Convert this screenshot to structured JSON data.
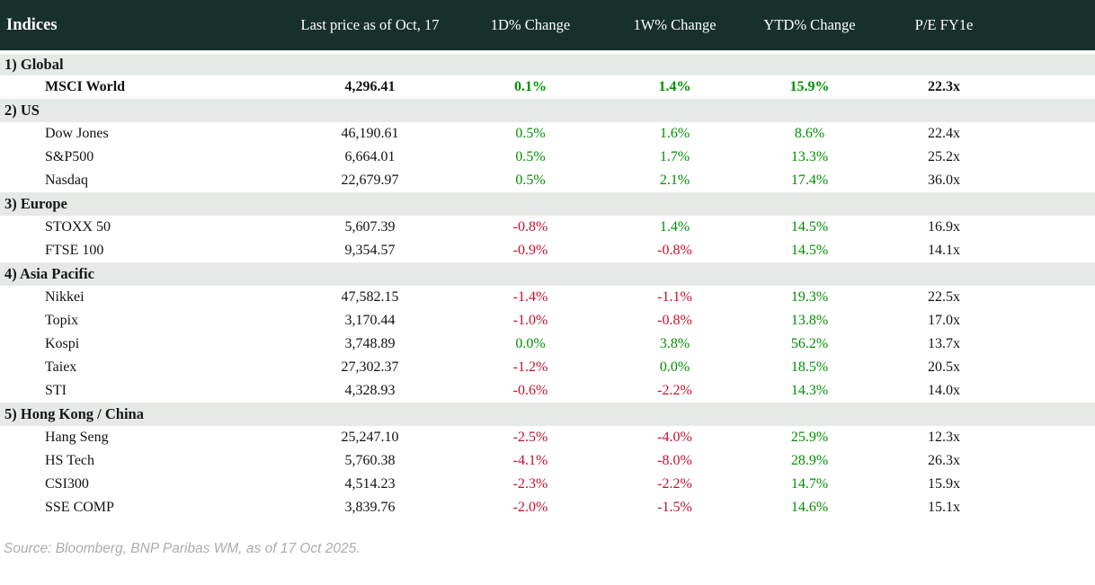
{
  "chart_data": {
    "type": "table",
    "title": "Indices",
    "columns": [
      "Last price as of Oct, 17",
      "1D% Change",
      "1W% Change",
      "YTD% Change",
      "P/E FY1e"
    ],
    "sections": [
      {
        "label": "1) Global",
        "rows": [
          {
            "name": "MSCI World",
            "price": "4,296.41",
            "d1": "0.1%",
            "w1": "1.4%",
            "ytd": "15.9%",
            "pe": "22.3x"
          }
        ]
      },
      {
        "label": "2) US",
        "rows": [
          {
            "name": "Dow Jones",
            "price": "46,190.61",
            "d1": "0.5%",
            "w1": "1.6%",
            "ytd": "8.6%",
            "pe": "22.4x"
          },
          {
            "name": "S&P500",
            "price": "6,664.01",
            "d1": "0.5%",
            "w1": "1.7%",
            "ytd": "13.3%",
            "pe": "25.2x"
          },
          {
            "name": "Nasdaq",
            "price": "22,679.97",
            "d1": "0.5%",
            "w1": "2.1%",
            "ytd": "17.4%",
            "pe": "36.0x"
          }
        ]
      },
      {
        "label": "3) Europe",
        "rows": [
          {
            "name": "STOXX 50",
            "price": "5,607.39",
            "d1": "-0.8%",
            "w1": "1.4%",
            "ytd": "14.5%",
            "pe": "16.9x"
          },
          {
            "name": "FTSE 100",
            "price": "9,354.57",
            "d1": "-0.9%",
            "w1": "-0.8%",
            "ytd": "14.5%",
            "pe": "14.1x"
          }
        ]
      },
      {
        "label": "4) Asia Pacific",
        "rows": [
          {
            "name": "Nikkei",
            "price": "47,582.15",
            "d1": "-1.4%",
            "w1": "-1.1%",
            "ytd": "19.3%",
            "pe": "22.5x"
          },
          {
            "name": "Topix",
            "price": "3,170.44",
            "d1": "-1.0%",
            "w1": "-0.8%",
            "ytd": "13.8%",
            "pe": "17.0x"
          },
          {
            "name": "Kospi",
            "price": "3,748.89",
            "d1": "0.0%",
            "w1": "3.8%",
            "ytd": "56.2%",
            "pe": "13.7x"
          },
          {
            "name": "Taiex",
            "price": "27,302.37",
            "d1": "-1.2%",
            "w1": "0.0%",
            "ytd": "18.5%",
            "pe": "20.5x"
          },
          {
            "name": "STI",
            "price": "4,328.93",
            "d1": "-0.6%",
            "w1": "-2.2%",
            "ytd": "14.3%",
            "pe": "14.0x"
          }
        ]
      },
      {
        "label": "5) Hong Kong / China",
        "rows": [
          {
            "name": "Hang Seng",
            "price": "25,247.10",
            "d1": "-2.5%",
            "w1": "-4.0%",
            "ytd": "25.9%",
            "pe": "12.3x"
          },
          {
            "name": "HS Tech",
            "price": "5,760.38",
            "d1": "-4.1%",
            "w1": "-8.0%",
            "ytd": "28.9%",
            "pe": "26.3x"
          },
          {
            "name": "CSI300",
            "price": "4,514.23",
            "d1": "-2.3%",
            "w1": "-2.2%",
            "ytd": "14.7%",
            "pe": "15.9x"
          },
          {
            "name": "SSE COMP",
            "price": "3,839.76",
            "d1": "-2.0%",
            "w1": "-1.5%",
            "ytd": "14.6%",
            "pe": "15.1x"
          }
        ]
      }
    ],
    "layout": {
      "value_columns_alignment": "center",
      "positive_color": "#008f00",
      "negative_color": "#c8102e"
    }
  },
  "footer": {
    "source": "Source: Bloomberg, BNP Paribas WM, as of 17 Oct 2025."
  },
  "colors": {
    "header-bg": "#18302b",
    "band-bg": "#e6eae7",
    "pos": "#008f00",
    "neg": "#c8102e",
    "source": "#a9adaf"
  }
}
